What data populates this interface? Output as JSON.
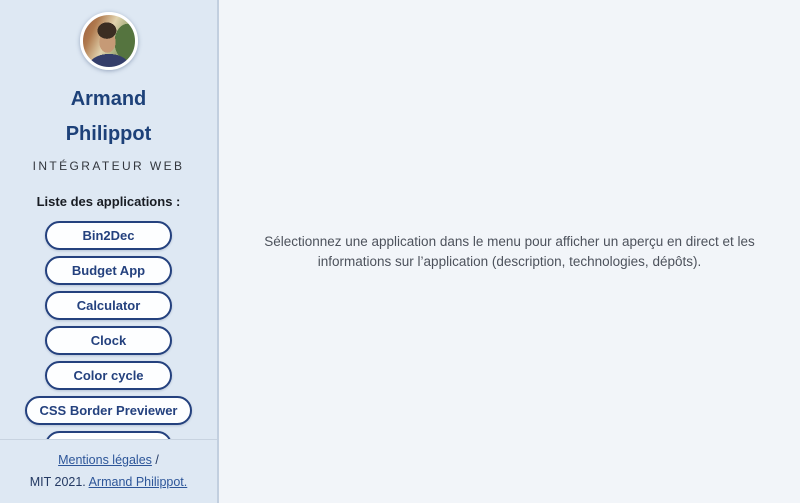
{
  "sidebar": {
    "name": "Armand Philippot",
    "role": "INTÉGRATEUR WEB",
    "apps_label": "Liste des applications :",
    "apps": [
      {
        "label": "Bin2Dec"
      },
      {
        "label": "Budget App"
      },
      {
        "label": "Calculator"
      },
      {
        "label": "Clock"
      },
      {
        "label": "Color cycle"
      },
      {
        "label": "CSS Border Previewer"
      },
      {
        "label": ""
      }
    ],
    "footer": {
      "legal_link": "Mentions légales",
      "separator": "/",
      "license": "MIT 2021.",
      "author_link": "Armand Philippot."
    }
  },
  "main": {
    "message_lines": {
      "line1": "Sélectionnez une application dans le menu pour afficher un aperçu en direct et les",
      "line2": "informations sur l’application (description, technologies, dépôts)."
    }
  },
  "colors": {
    "sidebar_bg": "#dee8f3",
    "main_bg": "#f2f5f9",
    "accent_navy": "#24417e",
    "name_color": "#1d4179",
    "link_color": "#2d5699",
    "border_color": "#c2cfdf"
  }
}
